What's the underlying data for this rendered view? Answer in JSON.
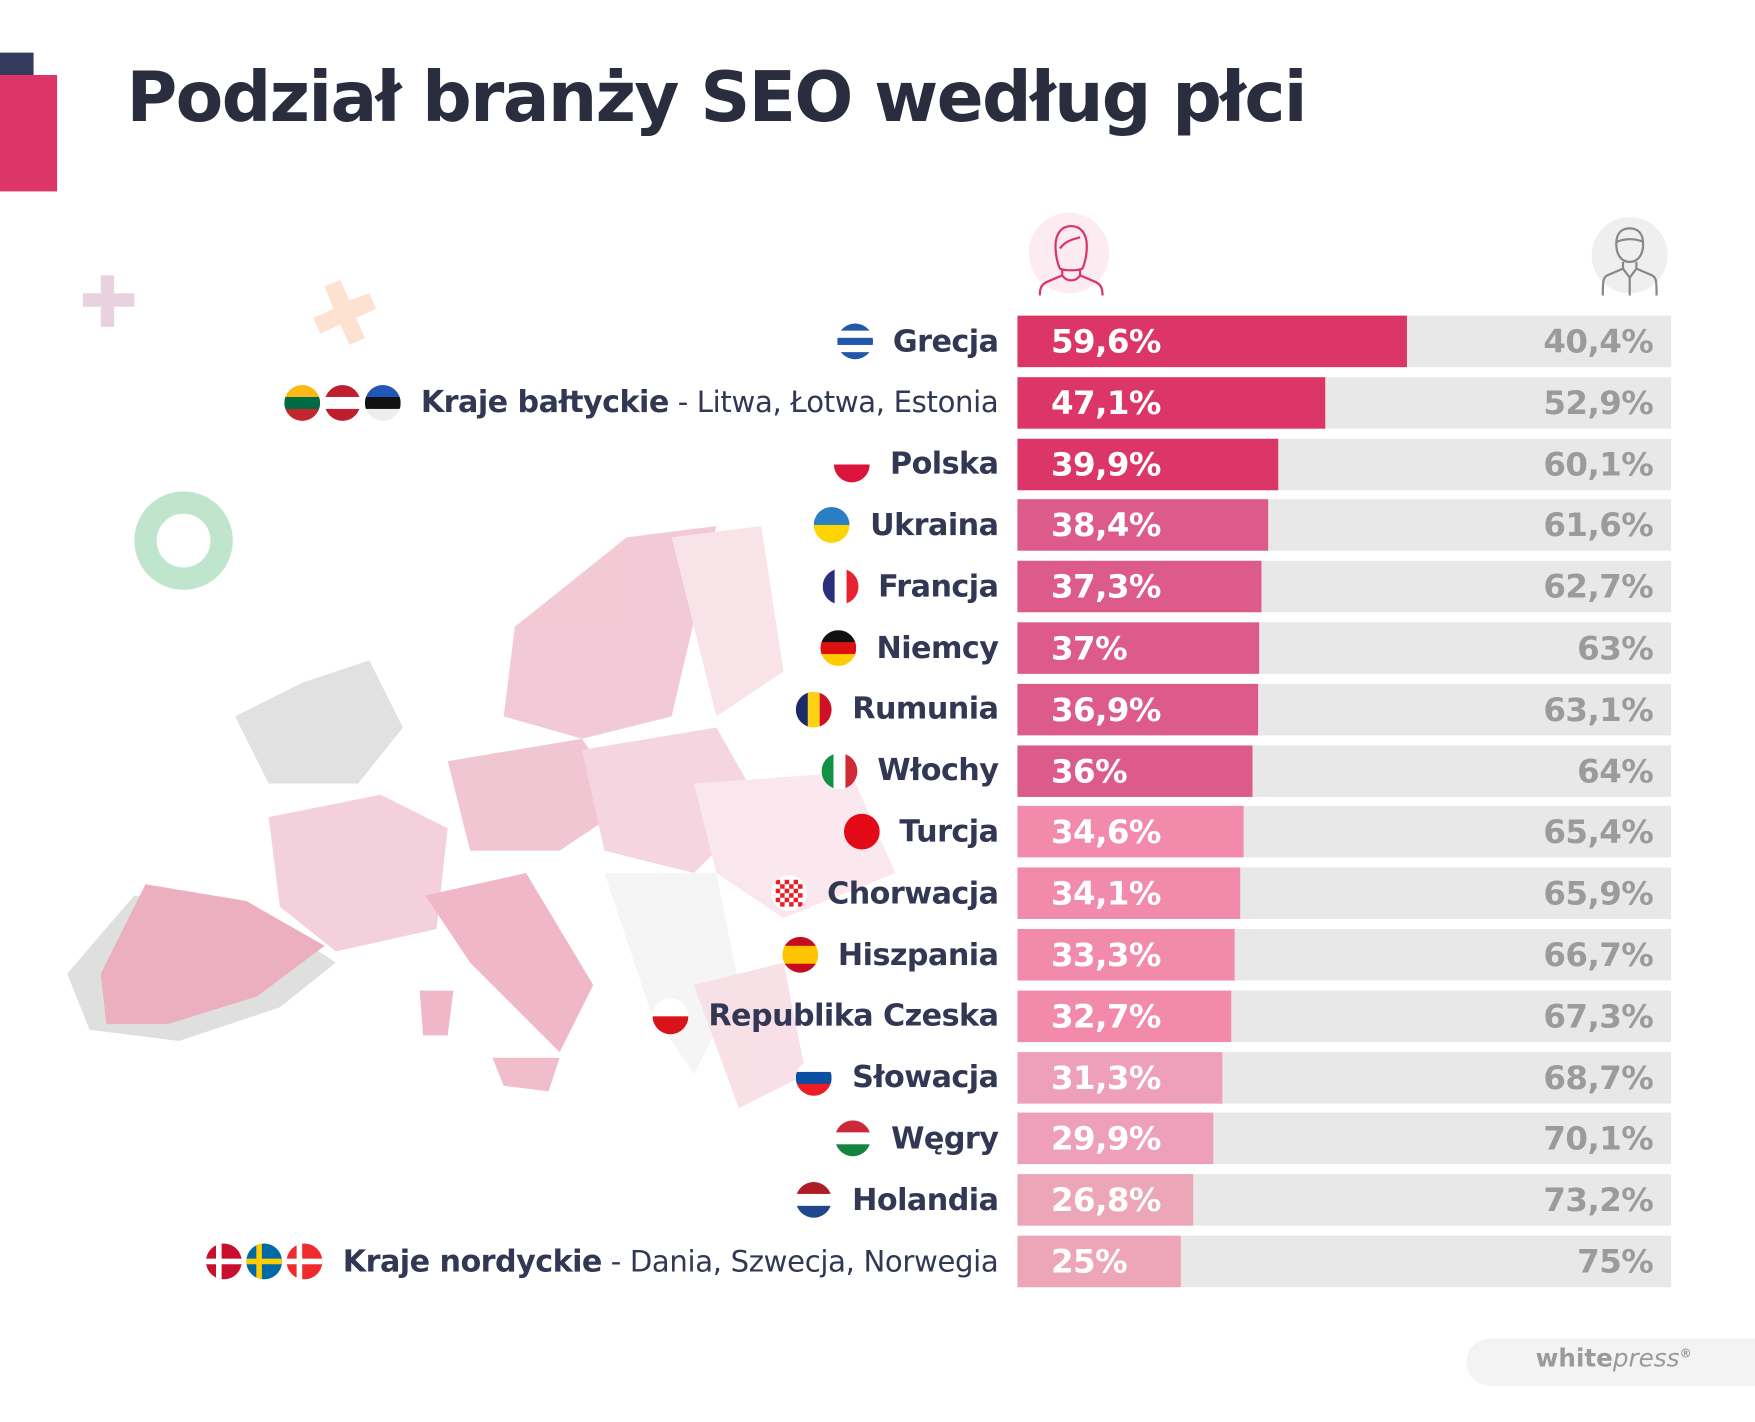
{
  "title": "Podział branży SEO według płci",
  "icons": {
    "female": "woman-icon",
    "male": "man-icon"
  },
  "colors": {
    "title": "#2a2d3e",
    "accent": "#dc3669",
    "male_bar": "#e8e8e8"
  },
  "chart_data": {
    "type": "bar",
    "stacked": true,
    "orientation": "horizontal",
    "title": "Podział branży SEO według płci",
    "xlim": [
      0,
      100
    ],
    "series": [
      {
        "name": "Kobiety",
        "icon": "woman-icon"
      },
      {
        "name": "Mężczyźni",
        "icon": "man-icon"
      }
    ],
    "rows": [
      {
        "name": "Grecja",
        "sub": "",
        "female": 59.6,
        "male": 40.4,
        "female_label": "59,6%",
        "male_label": "40,4%",
        "color": "#dc3669",
        "flags": [
          [
            "h",
            "#2159a8",
            "#ffffff",
            "#2159a8",
            "#ffffff",
            "#2159a8"
          ]
        ]
      },
      {
        "name": "Kraje bałtyckie",
        "sub": " - Litwa, Łotwa, Estonia",
        "female": 47.1,
        "male": 52.9,
        "female_label": "47,1%",
        "male_label": "52,9%",
        "color": "#dc3669",
        "flags": [
          [
            "h",
            "#fdb913",
            "#006a44",
            "#c1272d"
          ],
          [
            "h",
            "#be1e2d",
            "#ffffff",
            "#be1e2d"
          ],
          [
            "h",
            "#2256b8",
            "#111111",
            "#eeeeee"
          ]
        ]
      },
      {
        "name": "Polska",
        "sub": "",
        "female": 39.9,
        "male": 60.1,
        "female_label": "39,9%",
        "male_label": "60,1%",
        "color": "#dc3669",
        "flags": [
          [
            "h",
            "#ffffff",
            "#dc143c"
          ]
        ]
      },
      {
        "name": "Ukraina",
        "sub": "",
        "female": 38.4,
        "male": 61.6,
        "female_label": "38,4%",
        "male_label": "61,6%",
        "color": "#dd5b8b",
        "flags": [
          [
            "h",
            "#2a7ec4",
            "#ffd500"
          ]
        ]
      },
      {
        "name": "Francja",
        "sub": "",
        "female": 37.3,
        "male": 62.7,
        "female_label": "37,3%",
        "male_label": "62,7%",
        "color": "#dd5b8b",
        "flags": [
          [
            "v",
            "#2a2f7a",
            "#ffffff",
            "#e8222f"
          ]
        ]
      },
      {
        "name": "Niemcy",
        "sub": "",
        "female": 37,
        "male": 63,
        "female_label": "37%",
        "male_label": "63%",
        "color": "#dd5b8b",
        "flags": [
          [
            "h",
            "#111111",
            "#dd1010",
            "#ffcc00"
          ]
        ]
      },
      {
        "name": "Rumunia",
        "sub": "",
        "female": 36.9,
        "male": 63.1,
        "female_label": "36,9%",
        "male_label": "63,1%",
        "color": "#dd5b8b",
        "flags": [
          [
            "v",
            "#1c2a6a",
            "#fcd116",
            "#ce1126"
          ]
        ]
      },
      {
        "name": "Włochy",
        "sub": "",
        "female": 36,
        "male": 64,
        "female_label": "36%",
        "male_label": "64%",
        "color": "#dd5b8b",
        "flags": [
          [
            "v",
            "#119246",
            "#ffffff",
            "#ce2b37"
          ]
        ]
      },
      {
        "name": "Turcja",
        "sub": "",
        "female": 34.6,
        "male": 65.4,
        "female_label": "34,6%",
        "male_label": "65,4%",
        "color": "#f28aab",
        "flags": [
          [
            "h",
            "#e30a17"
          ]
        ]
      },
      {
        "name": "Chorwacja",
        "sub": "",
        "female": 34.1,
        "male": 65.9,
        "female_label": "34,1%",
        "male_label": "65,9%",
        "color": "#f28aab",
        "flags": [
          [
            "c",
            "#ee1c25",
            "#ffffff"
          ]
        ]
      },
      {
        "name": "Hiszpania",
        "sub": "",
        "female": 33.3,
        "male": 66.7,
        "female_label": "33,3%",
        "male_label": "66,7%",
        "color": "#f28aab",
        "flags": [
          [
            "h",
            "#c60b1e",
            "#ffc400",
            "#ffc400",
            "#c60b1e"
          ]
        ]
      },
      {
        "name": "Republika Czeska",
        "sub": "",
        "female": 32.7,
        "male": 67.3,
        "female_label": "32,7%",
        "male_label": "67,3%",
        "color": "#f28aab",
        "flags": [
          [
            "h",
            "#ffffff",
            "#d7141a"
          ]
        ]
      },
      {
        "name": "Słowacja",
        "sub": "",
        "female": 31.3,
        "male": 68.7,
        "female_label": "31,3%",
        "male_label": "68,7%",
        "color": "#eea0bb",
        "flags": [
          [
            "h",
            "#ffffff",
            "#0b4ea2",
            "#ee1c25"
          ]
        ]
      },
      {
        "name": "Węgry",
        "sub": "",
        "female": 29.9,
        "male": 70.1,
        "female_label": "29,9%",
        "male_label": "70,1%",
        "color": "#eea0bb",
        "flags": [
          [
            "h",
            "#ce2939",
            "#ffffff",
            "#14843f"
          ]
        ]
      },
      {
        "name": "Holandia",
        "sub": "",
        "female": 26.8,
        "male": 73.2,
        "female_label": "26,8%",
        "male_label": "73,2%",
        "color": "#eca6b8",
        "flags": [
          [
            "h",
            "#ae1c28",
            "#ffffff",
            "#21468b"
          ]
        ]
      },
      {
        "name": "Kraje nordyckie",
        "sub": " - Dania, Szwecja, Norwegia",
        "female": 25,
        "male": 75,
        "female_label": "25%",
        "male_label": "75%",
        "color": "#eca6b8",
        "flags": [
          [
            "x",
            "#c8102e",
            "#ffffff"
          ],
          [
            "x",
            "#006aa7",
            "#fecc00"
          ],
          [
            "x",
            "#ef2b2d",
            "#ffffff"
          ]
        ]
      }
    ]
  },
  "brand": {
    "bold": "white",
    "italic": "press",
    "mark": "®"
  }
}
